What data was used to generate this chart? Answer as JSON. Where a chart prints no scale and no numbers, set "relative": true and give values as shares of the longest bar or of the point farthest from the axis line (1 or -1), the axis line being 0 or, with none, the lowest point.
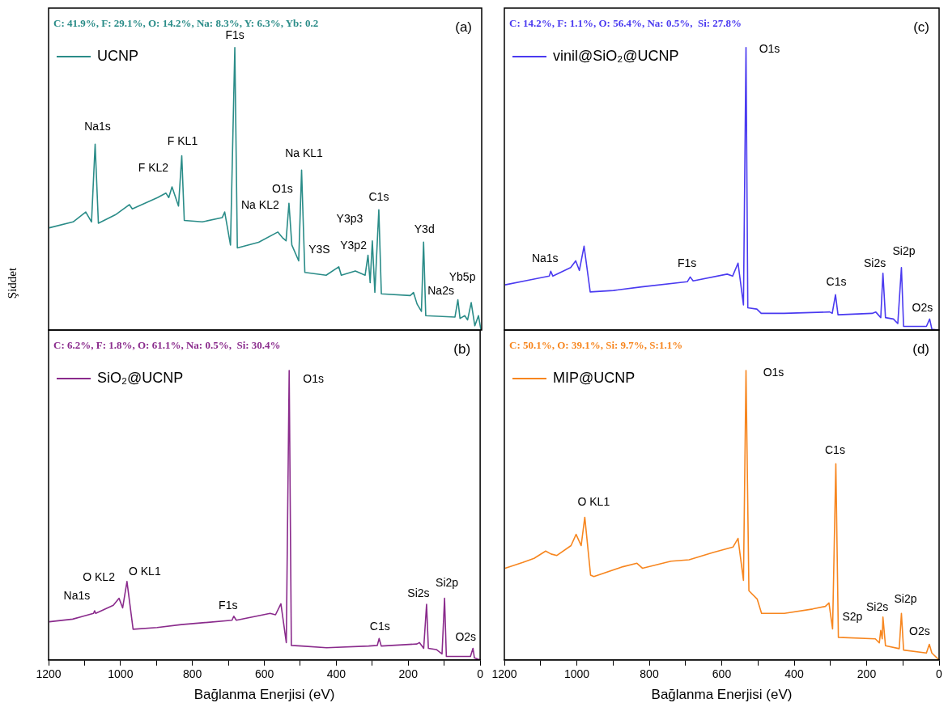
{
  "chart_data": [
    {
      "type": "line",
      "title": "(a)",
      "subtitle": "C: 41.9%, F: 29.1%, O: 14.2%, Na: 8.3%, Y: 6.3%, Yb: 0.2",
      "ylabel": "Şiddet",
      "relative": true,
      "legend": "top left",
      "tick_labels": false,
      "xlim": [
        1200,
        0
      ],
      "x": [
        1198,
        1132,
        1097,
        1081,
        1071,
        1062,
        1015,
        976,
        968,
        898,
        875,
        867,
        858,
        840,
        831,
        824,
        774,
        719,
        712,
        696,
        684,
        677,
        618,
        565,
        552,
        542,
        534,
        526,
        507,
        499,
        490,
        431,
        396,
        389,
        350,
        323,
        315,
        309,
        303,
        296,
        285,
        278,
        198,
        189,
        179,
        167,
        161,
        155,
        74,
        66,
        60,
        47,
        39,
        29,
        19,
        9,
        2
      ],
      "series": [
        {
          "name": "UCNP",
          "color": "#2a8c88",
          "values": [
            0.362,
            0.383,
            0.418,
            0.383,
            0.658,
            0.378,
            0.408,
            0.444,
            0.429,
            0.469,
            0.485,
            0.469,
            0.507,
            0.439,
            0.617,
            0.388,
            0.383,
            0.398,
            0.418,
            0.301,
            1.0,
            0.291,
            0.311,
            0.347,
            0.327,
            0.316,
            0.449,
            0.301,
            0.245,
            0.566,
            0.204,
            0.194,
            0.224,
            0.194,
            0.209,
            0.194,
            0.265,
            0.168,
            0.316,
            0.133,
            0.426,
            0.128,
            0.122,
            0.133,
            0.092,
            0.066,
            0.311,
            0.051,
            0.046,
            0.107,
            0.041,
            0.051,
            0.036,
            0.097,
            0.015,
            0.051,
            0.0
          ]
        }
      ],
      "annotations": [
        {
          "text": "Na1s",
          "x": 1071,
          "y": 0.658
        },
        {
          "text": "F KL2",
          "x": 858,
          "y": 0.507
        },
        {
          "text": "F KL1",
          "x": 831,
          "y": 0.617
        },
        {
          "text": "F1s",
          "x": 684,
          "y": 1.0
        },
        {
          "text": "Na KL1",
          "x": 499,
          "y": 0.566
        },
        {
          "text": "O1s",
          "x": 534,
          "y": 0.449
        },
        {
          "text": "Na KL2",
          "x": 542,
          "y": 0.316
        },
        {
          "text": "C1s",
          "x": 285,
          "y": 0.426
        },
        {
          "text": "Y3p3",
          "x": 303,
          "y": 0.316
        },
        {
          "text": "Y3S",
          "x": 396,
          "y": 0.224
        },
        {
          "text": "Y3p2",
          "x": 315,
          "y": 0.265
        },
        {
          "text": "Y3d",
          "x": 161,
          "y": 0.311
        },
        {
          "text": "Yb5p",
          "x": 29,
          "y": 0.097
        },
        {
          "text": "Na2s",
          "x": 66,
          "y": 0.107
        }
      ]
    },
    {
      "type": "line",
      "title": "(c)",
      "subtitle": "C: 14.2%, F: 1.1%, O: 56.4%, Na: 0.5%,  Si: 27.8%",
      "relative": true,
      "legend": "top left",
      "tick_labels": false,
      "xlim": [
        1200,
        0
      ],
      "x": [
        1198,
        1135,
        1076,
        1072,
        1066,
        1017,
        1003,
        993,
        980,
        963,
        899,
        821,
        695,
        687,
        679,
        585,
        570,
        555,
        540,
        533,
        528,
        503,
        491,
        428,
        302,
        295,
        286,
        279,
        185,
        175,
        161,
        155,
        148,
        126,
        114,
        104,
        98,
        35,
        26,
        20,
        2
      ],
      "series": [
        {
          "name": "vinil@SiO₂@UCNP",
          "color": "#4a3af0",
          "values": [
            0.16,
            0.176,
            0.191,
            0.208,
            0.191,
            0.221,
            0.245,
            0.211,
            0.297,
            0.135,
            0.14,
            0.153,
            0.171,
            0.188,
            0.174,
            0.198,
            0.191,
            0.237,
            0.089,
            1.0,
            0.079,
            0.074,
            0.059,
            0.059,
            0.064,
            0.059,
            0.125,
            0.054,
            0.059,
            0.064,
            0.044,
            0.201,
            0.044,
            0.039,
            0.023,
            0.221,
            0.013,
            0.013,
            0.039,
            0.003,
            0.0
          ]
        }
      ],
      "annotations": [
        {
          "text": "Na1s",
          "x": 1072,
          "y": 0.208
        },
        {
          "text": "F1s",
          "x": 687,
          "y": 0.188
        },
        {
          "text": "O1s",
          "x": 533,
          "y": 1.0
        },
        {
          "text": "C1s",
          "x": 286,
          "y": 0.125
        },
        {
          "text": "Si2s",
          "x": 155,
          "y": 0.201
        },
        {
          "text": "Si2p",
          "x": 104,
          "y": 0.221
        },
        {
          "text": "O2s",
          "x": 26,
          "y": 0.039
        }
      ]
    },
    {
      "type": "line",
      "title": "(b)",
      "subtitle": "C: 6.2%, F: 1.8%, O: 61.1%, Na: 0.5%,  Si: 30.4%",
      "xlabel": "Bağlanma Enerjisi (eV)",
      "relative": true,
      "legend": "top left",
      "tick_labels": "x",
      "xlim": [
        1200,
        0
      ],
      "xticks": [
        1200,
        {
          "value": 1100,
          "label": null
        },
        1000,
        {
          "value": 900,
          "label": null
        },
        800,
        {
          "value": 700,
          "label": null
        },
        600,
        {
          "value": 500,
          "label": null
        },
        400,
        {
          "value": 300,
          "label": null
        },
        200,
        {
          "value": 100,
          "label": null
        },
        0
      ],
      "x": [
        1198,
        1133,
        1075,
        1072,
        1069,
        1020,
        1004,
        994,
        982,
        965,
        898,
        831,
        690,
        685,
        678,
        584,
        569,
        554,
        539,
        531,
        525,
        496,
        427,
        310,
        286,
        281,
        275,
        176,
        169,
        157,
        149,
        144,
        122,
        106,
        99,
        94,
        27,
        20,
        16,
        0
      ],
      "series": [
        {
          "name": "SiO₂@UCNP",
          "color": "#8a2b8c",
          "values": [
            0.132,
            0.141,
            0.161,
            0.17,
            0.161,
            0.189,
            0.213,
            0.18,
            0.271,
            0.106,
            0.112,
            0.122,
            0.137,
            0.151,
            0.137,
            0.161,
            0.156,
            0.194,
            0.06,
            1.0,
            0.05,
            0.048,
            0.042,
            0.048,
            0.05,
            0.074,
            0.048,
            0.055,
            0.06,
            0.04,
            0.192,
            0.04,
            0.036,
            0.021,
            0.213,
            0.012,
            0.012,
            0.04,
            0.007,
            0.0
          ]
        }
      ],
      "annotations": [
        {
          "text": "Na1s",
          "x": 1072,
          "y": 0.17
        },
        {
          "text": "O KL2",
          "x": 1004,
          "y": 0.213
        },
        {
          "text": "O KL1",
          "x": 982,
          "y": 0.271
        },
        {
          "text": "F1s",
          "x": 685,
          "y": 0.151
        },
        {
          "text": "O1s",
          "x": 531,
          "y": 1.0
        },
        {
          "text": "C1s",
          "x": 281,
          "y": 0.074
        },
        {
          "text": "Si2s",
          "x": 149,
          "y": 0.192
        },
        {
          "text": "Si2p",
          "x": 99,
          "y": 0.213
        },
        {
          "text": "O2s",
          "x": 20,
          "y": 0.04
        }
      ]
    },
    {
      "type": "line",
      "title": "(d)",
      "subtitle": "C: 50.1%, O: 39.1%, Si: 9.7%, S:1.1%",
      "xlabel": "Bağlanma Enerjisi (eV)",
      "relative": true,
      "legend": "top left",
      "tick_labels": "x",
      "xlim": [
        1200,
        0
      ],
      "xticks": [
        1200,
        {
          "value": 1100,
          "label": null
        },
        1000,
        {
          "value": 900,
          "label": null
        },
        800,
        {
          "value": 700,
          "label": null
        },
        600,
        {
          "value": 500,
          "label": null
        },
        400,
        {
          "value": 300,
          "label": null
        },
        200,
        {
          "value": 100,
          "label": null
        },
        0
      ],
      "x": [
        1198,
        1149,
        1118,
        1086,
        1071,
        1055,
        1016,
        1002,
        988,
        978,
        962,
        953,
        873,
        834,
        819,
        740,
        690,
        624,
        569,
        555,
        540,
        533,
        525,
        502,
        490,
        427,
        349,
        314,
        304,
        294,
        285,
        278,
        176,
        165,
        161,
        157,
        155,
        148,
        110,
        104,
        98,
        35,
        27,
        20,
        0
      ],
      "series": [
        {
          "name": "MIP@UCNP",
          "color": "#f7861f",
          "values": [
            0.317,
            0.337,
            0.351,
            0.376,
            0.366,
            0.361,
            0.395,
            0.434,
            0.395,
            0.493,
            0.293,
            0.288,
            0.322,
            0.334,
            0.317,
            0.341,
            0.346,
            0.371,
            0.39,
            0.42,
            0.275,
            1.0,
            0.239,
            0.21,
            0.161,
            0.161,
            0.176,
            0.185,
            0.197,
            0.107,
            0.678,
            0.078,
            0.073,
            0.059,
            0.102,
            0.073,
            0.148,
            0.049,
            0.039,
            0.161,
            0.034,
            0.024,
            0.054,
            0.024,
            0.0
          ]
        }
      ],
      "annotations": [
        {
          "text": "O1s",
          "x": 533,
          "y": 1.0
        },
        {
          "text": "C1s",
          "x": 285,
          "y": 0.678
        },
        {
          "text": "O KL1",
          "x": 978,
          "y": 0.493
        },
        {
          "text": "S2p",
          "x": 161,
          "y": 0.102
        },
        {
          "text": "Si2s",
          "x": 155,
          "y": 0.148
        },
        {
          "text": "Si2p",
          "x": 104,
          "y": 0.161
        },
        {
          "text": "O2s",
          "x": 27,
          "y": 0.054
        }
      ]
    }
  ]
}
